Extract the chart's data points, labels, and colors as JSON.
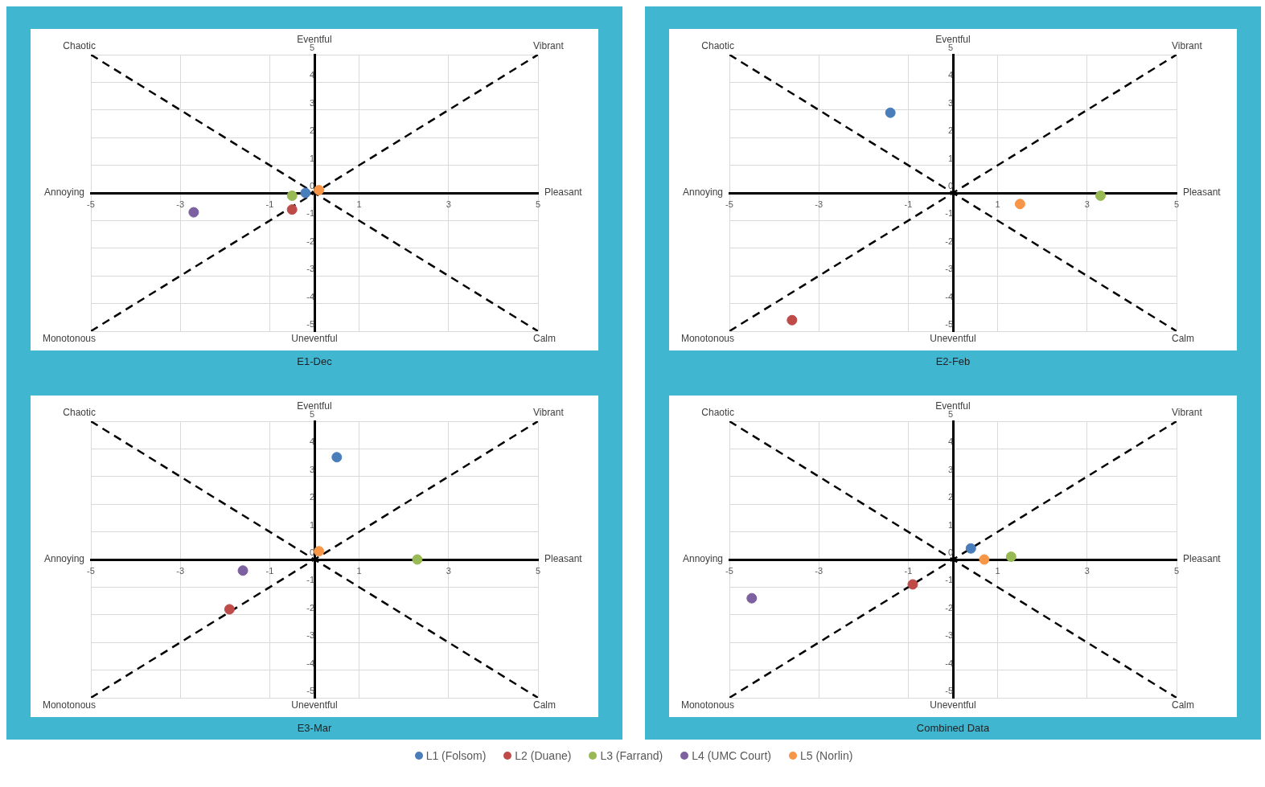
{
  "chart_data": [
    {
      "type": "scatter",
      "title": "E1-Dec",
      "xlim": [
        -5,
        5
      ],
      "ylim": [
        -5,
        5
      ],
      "xticks": [
        -5,
        -3,
        -1,
        1,
        3,
        5
      ],
      "yticks": [
        -5,
        -4,
        -3,
        -2,
        -1,
        0,
        1,
        2,
        3,
        4,
        5
      ],
      "grid": true,
      "marker": "circle",
      "annotations": [
        "Eventful",
        "Uneventful",
        "Annoying",
        "Pleasant",
        "Chaotic",
        "Vibrant",
        "Monotonous",
        "Calm"
      ],
      "series": [
        {
          "color": "#4a7ebb",
          "x": [
            -0.2
          ],
          "values": [
            0.0
          ]
        },
        {
          "color": "#be4b48",
          "x": [
            -0.5
          ],
          "values": [
            -0.6
          ]
        },
        {
          "color": "#98b954",
          "x": [
            -0.5
          ],
          "values": [
            -0.1
          ]
        },
        {
          "color": "#7d60a0",
          "x": [
            -2.7
          ],
          "values": [
            -0.7
          ]
        },
        {
          "color": "#f79646",
          "x": [
            0.1
          ],
          "values": [
            0.1
          ]
        },
        {
          "type": "line",
          "color": "#000000",
          "line_style": "dashed",
          "marker": "none",
          "x": [
            -5,
            5
          ],
          "values": [
            5,
            -5
          ]
        },
        {
          "type": "line",
          "color": "#000000",
          "line_style": "dashed",
          "marker": "none",
          "x": [
            -5,
            5
          ],
          "values": [
            -5,
            5
          ]
        }
      ]
    },
    {
      "type": "scatter",
      "title": "E2-Feb",
      "xlim": [
        -5,
        5
      ],
      "ylim": [
        -5,
        5
      ],
      "xticks": [
        -5,
        -3,
        -1,
        1,
        3,
        5
      ],
      "yticks": [
        -5,
        -4,
        -3,
        -2,
        -1,
        0,
        1,
        2,
        3,
        4,
        5
      ],
      "grid": true,
      "marker": "circle",
      "annotations": [
        "Eventful",
        "Uneventful",
        "Annoying",
        "Pleasant",
        "Chaotic",
        "Vibrant",
        "Monotonous",
        "Calm"
      ],
      "series": [
        {
          "color": "#4a7ebb",
          "x": [
            -1.4
          ],
          "values": [
            2.9
          ]
        },
        {
          "color": "#be4b48",
          "x": [
            -3.6
          ],
          "values": [
            -4.6
          ]
        },
        {
          "color": "#98b954",
          "x": [
            3.3
          ],
          "values": [
            -0.1
          ]
        },
        {
          "color": "#f79646",
          "x": [
            1.5
          ],
          "values": [
            -0.4
          ]
        },
        {
          "type": "line",
          "color": "#000000",
          "line_style": "dashed",
          "marker": "none",
          "x": [
            -5,
            5
          ],
          "values": [
            5,
            -5
          ]
        },
        {
          "type": "line",
          "color": "#000000",
          "line_style": "dashed",
          "marker": "none",
          "x": [
            -5,
            5
          ],
          "values": [
            -5,
            5
          ]
        }
      ]
    },
    {
      "type": "scatter",
      "title": "E3-Mar",
      "xlim": [
        -5,
        5
      ],
      "ylim": [
        -5,
        5
      ],
      "xticks": [
        -5,
        -3,
        -1,
        1,
        3,
        5
      ],
      "yticks": [
        -5,
        -4,
        -3,
        -2,
        -1,
        0,
        1,
        2,
        3,
        4,
        5
      ],
      "grid": true,
      "marker": "circle",
      "annotations": [
        "Eventful",
        "Uneventful",
        "Annoying",
        "Pleasant",
        "Chaotic",
        "Vibrant",
        "Monotonous",
        "Calm"
      ],
      "series": [
        {
          "color": "#4a7ebb",
          "x": [
            0.5
          ],
          "values": [
            3.7
          ]
        },
        {
          "color": "#be4b48",
          "x": [
            -1.9
          ],
          "values": [
            -1.8
          ]
        },
        {
          "color": "#98b954",
          "x": [
            2.3
          ],
          "values": [
            0.0
          ]
        },
        {
          "color": "#7d60a0",
          "x": [
            -1.6
          ],
          "values": [
            -0.4
          ]
        },
        {
          "color": "#f79646",
          "x": [
            0.1
          ],
          "values": [
            0.3
          ]
        },
        {
          "type": "line",
          "color": "#000000",
          "line_style": "dashed",
          "marker": "none",
          "x": [
            -5,
            5
          ],
          "values": [
            5,
            -5
          ]
        },
        {
          "type": "line",
          "color": "#000000",
          "line_style": "dashed",
          "marker": "none",
          "x": [
            -5,
            5
          ],
          "values": [
            -5,
            5
          ]
        }
      ]
    },
    {
      "type": "scatter",
      "title": "Combined Data",
      "xlim": [
        -5,
        5
      ],
      "ylim": [
        -5,
        5
      ],
      "xticks": [
        -5,
        -3,
        -1,
        1,
        3,
        5
      ],
      "yticks": [
        -5,
        -4,
        -3,
        -2,
        -1,
        0,
        1,
        2,
        3,
        4,
        5
      ],
      "grid": true,
      "marker": "circle",
      "legend": "bottom",
      "annotations": [
        "Eventful",
        "Uneventful",
        "Annoying",
        "Pleasant",
        "Chaotic",
        "Vibrant",
        "Monotonous",
        "Calm"
      ],
      "series": [
        {
          "name": "L1 (Folsom)",
          "color": "#4a7ebb",
          "x": [
            0.4
          ],
          "values": [
            0.4
          ]
        },
        {
          "name": "L2 (Duane)",
          "color": "#be4b48",
          "x": [
            -0.9
          ],
          "values": [
            -0.9
          ]
        },
        {
          "name": "L3 (Farrand)",
          "color": "#98b954",
          "x": [
            1.3
          ],
          "values": [
            0.1
          ]
        },
        {
          "name": "L4 (UMC Court)",
          "color": "#7d60a0",
          "x": [
            -4.5
          ],
          "values": [
            -1.4
          ]
        },
        {
          "name": "L5 (Norlin)",
          "color": "#f79646",
          "x": [
            0.7
          ],
          "values": [
            0.0
          ]
        },
        {
          "type": "line",
          "color": "#000000",
          "line_style": "dashed",
          "marker": "none",
          "x": [
            -5,
            5
          ],
          "values": [
            5,
            -5
          ]
        },
        {
          "type": "line",
          "color": "#000000",
          "line_style": "dashed",
          "marker": "none",
          "x": [
            -5,
            5
          ],
          "values": [
            -5,
            5
          ]
        }
      ]
    }
  ]
}
